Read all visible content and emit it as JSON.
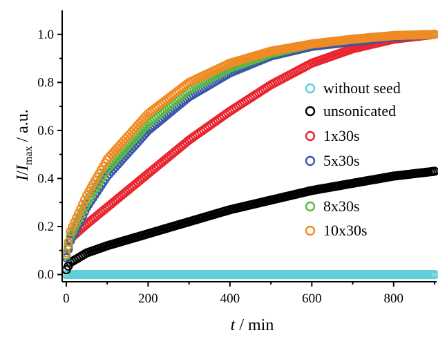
{
  "chart_data": {
    "type": "scatter",
    "title": "",
    "xlabel": {
      "italic": "t",
      "rest": " / min"
    },
    "ylabel": {
      "italic_I1": "I",
      "slash": "/",
      "italic_I2": "I",
      "sub": "max",
      "rest": " / a.u."
    },
    "xlim": [
      -10,
      905
    ],
    "ylim": [
      -0.03,
      1.1
    ],
    "x_ticks": [
      0,
      200,
      400,
      600,
      800
    ],
    "x_tick_labels": [
      "0",
      "200",
      "400",
      "600",
      "800"
    ],
    "y_ticks": [
      0.0,
      0.2,
      0.4,
      0.6,
      0.8,
      1.0
    ],
    "y_tick_labels": [
      "0.0",
      "0.2",
      "0.4",
      "0.6",
      "0.8",
      "1.0"
    ],
    "legend_position": "right",
    "marker": "open-circle",
    "series": [
      {
        "name": "without seed",
        "color": "#5ecfd8",
        "x": [
          0,
          100,
          200,
          300,
          400,
          500,
          600,
          700,
          800,
          900
        ],
        "y": [
          0.0,
          0.0,
          0.0,
          0.0,
          0.0,
          0.0,
          0.0,
          0.0,
          0.0,
          0.0
        ]
      },
      {
        "name": "unsonicated",
        "color": "#000000",
        "x": [
          0,
          10,
          50,
          100,
          200,
          300,
          400,
          500,
          600,
          700,
          800,
          900
        ],
        "y": [
          0.02,
          0.05,
          0.09,
          0.12,
          0.17,
          0.22,
          0.27,
          0.31,
          0.35,
          0.38,
          0.41,
          0.43
        ]
      },
      {
        "name": "1x30s",
        "color": "#e8252f",
        "x": [
          0,
          10,
          50,
          100,
          200,
          300,
          400,
          500,
          600,
          700,
          800,
          900
        ],
        "y": [
          0.08,
          0.15,
          0.21,
          0.28,
          0.42,
          0.56,
          0.68,
          0.79,
          0.88,
          0.94,
          0.98,
          1.0
        ]
      },
      {
        "name": "5x30s",
        "color": "#3a56a6",
        "x": [
          0,
          10,
          50,
          100,
          200,
          300,
          400,
          500,
          600,
          700,
          800,
          900
        ],
        "y": [
          0.07,
          0.14,
          0.28,
          0.41,
          0.6,
          0.74,
          0.84,
          0.91,
          0.95,
          0.97,
          0.99,
          1.0
        ]
      },
      {
        "name": "8x30s",
        "color": "#5cb947",
        "x": [
          0,
          10,
          50,
          100,
          200,
          300,
          400,
          500,
          600,
          700,
          800,
          900
        ],
        "y": [
          0.08,
          0.16,
          0.3,
          0.44,
          0.63,
          0.77,
          0.86,
          0.92,
          0.96,
          0.98,
          0.995,
          1.0
        ]
      },
      {
        "name": "10x30s",
        "color": "#f08a24",
        "x": [
          0,
          10,
          50,
          100,
          200,
          300,
          400,
          500,
          600,
          700,
          800,
          900
        ],
        "y": [
          0.09,
          0.18,
          0.33,
          0.48,
          0.67,
          0.8,
          0.88,
          0.93,
          0.96,
          0.98,
          0.995,
          1.0
        ]
      }
    ]
  }
}
